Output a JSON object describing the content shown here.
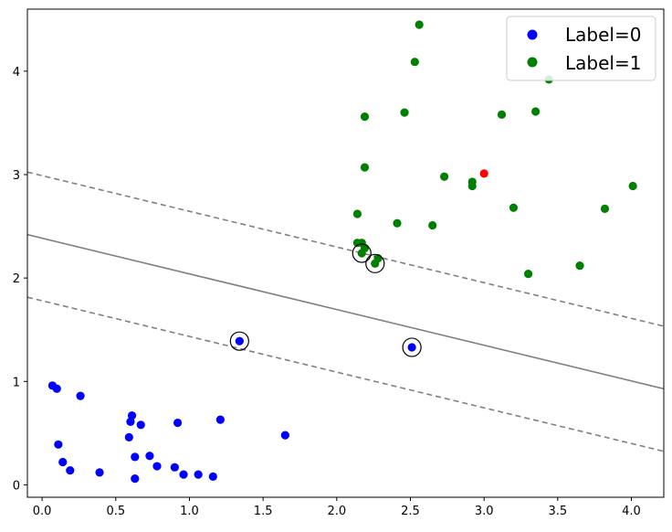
{
  "chart_data": {
    "type": "scatter",
    "xlim": [
      -0.1,
      4.22
    ],
    "ylim": [
      -0.12,
      4.6
    ],
    "x_ticks": [
      "0.0",
      "0.5",
      "1.0",
      "1.5",
      "2.0",
      "2.5",
      "3.0",
      "3.5",
      "4.0"
    ],
    "x_tick_values": [
      0.0,
      0.5,
      1.0,
      1.5,
      2.0,
      2.5,
      3.0,
      3.5,
      4.0
    ],
    "y_ticks": [
      "0",
      "1",
      "2",
      "3",
      "4"
    ],
    "y_tick_values": [
      0,
      1,
      2,
      3,
      4
    ],
    "grid": false,
    "legend_position": "top-right",
    "series": [
      {
        "name": "Label=0",
        "color": "#0000ff",
        "points": [
          [
            0.07,
            0.96
          ],
          [
            0.1,
            0.93
          ],
          [
            0.26,
            0.86
          ],
          [
            0.11,
            0.39
          ],
          [
            0.14,
            0.22
          ],
          [
            0.19,
            0.14
          ],
          [
            0.39,
            0.12
          ],
          [
            0.59,
            0.46
          ],
          [
            0.6,
            0.61
          ],
          [
            0.61,
            0.67
          ],
          [
            0.63,
            0.27
          ],
          [
            0.63,
            0.06
          ],
          [
            0.67,
            0.58
          ],
          [
            0.73,
            0.28
          ],
          [
            0.78,
            0.18
          ],
          [
            0.9,
            0.17
          ],
          [
            0.92,
            0.6
          ],
          [
            0.96,
            0.1
          ],
          [
            1.06,
            0.1
          ],
          [
            1.16,
            0.08
          ],
          [
            1.21,
            0.63
          ],
          [
            1.34,
            1.39
          ],
          [
            1.65,
            0.48
          ],
          [
            2.51,
            1.33
          ]
        ]
      },
      {
        "name": "Label=1",
        "color": "#008000",
        "points": [
          [
            2.14,
            2.62
          ],
          [
            2.14,
            2.34
          ],
          [
            2.17,
            2.34
          ],
          [
            2.17,
            2.24
          ],
          [
            2.19,
            3.07
          ],
          [
            2.19,
            3.56
          ],
          [
            2.19,
            2.29
          ],
          [
            2.26,
            2.14
          ],
          [
            2.28,
            2.19
          ],
          [
            2.41,
            2.53
          ],
          [
            2.46,
            3.6
          ],
          [
            2.53,
            4.09
          ],
          [
            2.56,
            4.45
          ],
          [
            2.65,
            2.51
          ],
          [
            2.73,
            2.98
          ],
          [
            2.92,
            2.93
          ],
          [
            2.92,
            2.89
          ],
          [
            3.12,
            3.58
          ],
          [
            3.2,
            2.68
          ],
          [
            3.3,
            2.04
          ],
          [
            3.35,
            3.61
          ],
          [
            3.44,
            3.92
          ],
          [
            3.65,
            2.12
          ],
          [
            3.82,
            2.67
          ],
          [
            4.01,
            2.89
          ]
        ]
      }
    ],
    "query_point": {
      "x": 3.0,
      "y": 3.01,
      "color": "#ff0000"
    },
    "support_vectors": [
      [
        1.34,
        1.39
      ],
      [
        2.51,
        1.33
      ],
      [
        2.17,
        2.24
      ],
      [
        2.26,
        2.14
      ]
    ],
    "decision_boundary": {
      "slope": -0.345,
      "intercept": 2.385
    },
    "margin_offset": 0.605,
    "line_color": "#808080"
  }
}
